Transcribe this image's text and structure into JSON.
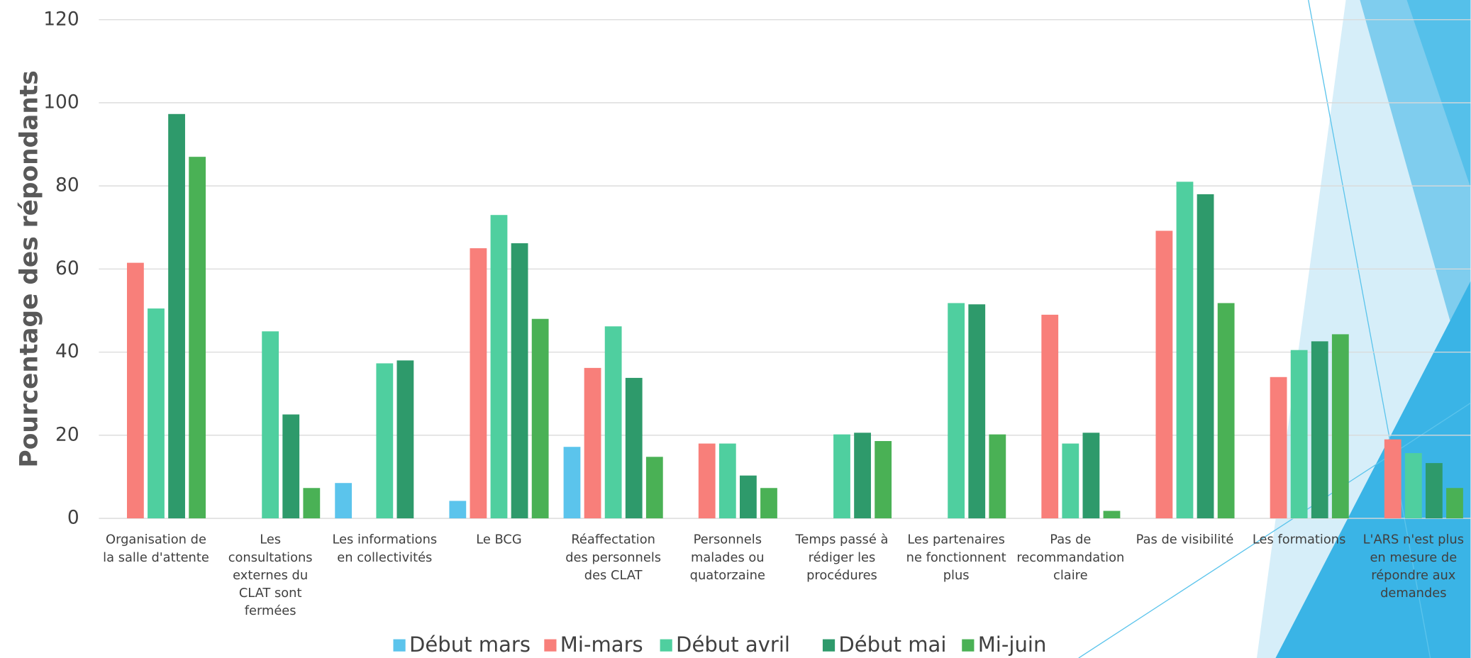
{
  "chart_data": {
    "type": "bar",
    "y_label": "Pourcentage des répondants",
    "categories": [
      "Organisation de\nla salle d'attente",
      "Les\nconsultations\nexternes du\nCLAT sont\nfermées",
      "Les informations\nen collectivités",
      "Le BCG",
      "Réaffectation\ndes personnels\ndes CLAT",
      "Personnels\nmalades ou\nquatorzaine",
      "Temps passé à\nrédiger les\nprocédures",
      "Les partenaires\nne fonctionnent\nplus",
      "Pas de\nrecommandation\nclaire",
      "Pas de visibilité",
      "Les formations",
      "L'ARS n'est plus\nen mesure de\nrépondre aux\ndemandes"
    ],
    "series": [
      {
        "name": "Début mars",
        "color": "#5bc4ec",
        "values": [
          null,
          null,
          8.5,
          4.2,
          17.2,
          null,
          null,
          null,
          null,
          null,
          null,
          null
        ]
      },
      {
        "name": "Mi-mars",
        "color": "#f87f7a",
        "values": [
          61.5,
          null,
          null,
          65,
          36.2,
          18,
          null,
          null,
          49,
          69.2,
          34,
          19
        ]
      },
      {
        "name": "Début avril",
        "color": "#4fcf9f",
        "values": [
          50.5,
          45,
          37.3,
          73,
          46.2,
          18,
          20.2,
          51.8,
          18,
          81,
          40.5,
          15.7
        ]
      },
      {
        "name": "Début mai",
        "color": "#2e9a6b",
        "values": [
          97.3,
          25,
          38,
          66.2,
          33.8,
          10.3,
          20.6,
          51.5,
          20.6,
          78,
          42.6,
          13.3
        ]
      },
      {
        "name": "Mi-juin",
        "color": "#4ab155",
        "values": [
          87,
          7.3,
          null,
          48,
          14.8,
          7.3,
          18.6,
          20.2,
          1.8,
          51.8,
          44.3,
          7.3
        ]
      }
    ],
    "ylim": [
      0,
      120
    ],
    "yticks": [
      0,
      20,
      40,
      60,
      80,
      100,
      120
    ],
    "grid": true
  }
}
